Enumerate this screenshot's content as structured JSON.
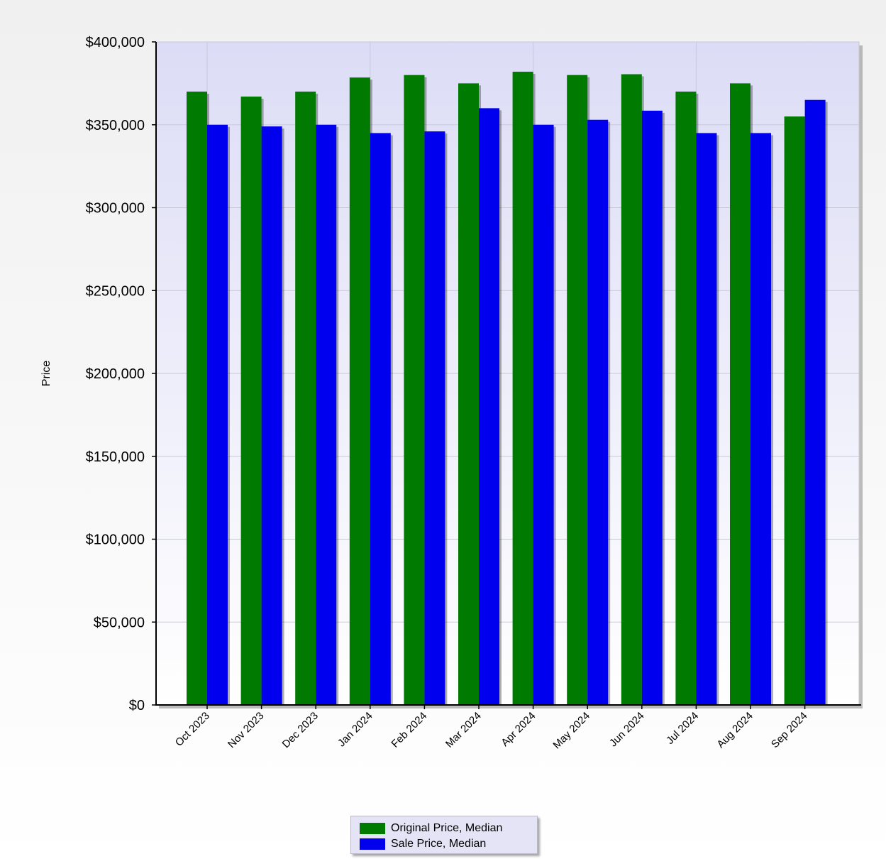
{
  "chart_data": {
    "type": "bar",
    "title": "",
    "xlabel": "",
    "ylabel": "Price",
    "ylim": [
      0,
      400000
    ],
    "yticks": [
      "$0",
      "$50,000",
      "$100,000",
      "$150,000",
      "$200,000",
      "$250,000",
      "$300,000",
      "$350,000",
      "$400,000"
    ],
    "ytick_values": [
      0,
      50000,
      100000,
      150000,
      200000,
      250000,
      300000,
      350000,
      400000
    ],
    "categories": [
      "Oct 2023",
      "Nov 2023",
      "Dec 2023",
      "Jan 2024",
      "Feb 2024",
      "Mar 2024",
      "Apr 2024",
      "May 2024",
      "Jun 2024",
      "Jul 2024",
      "Aug 2024",
      "Sep 2024"
    ],
    "series": [
      {
        "name": "Original Price, Median",
        "color": "#007a00",
        "values": [
          370000,
          367000,
          370000,
          378500,
          380000,
          375000,
          382000,
          380000,
          380500,
          370000,
          375000,
          355000
        ]
      },
      {
        "name": "Sale Price, Median",
        "color": "#0000ee",
        "values": [
          350000,
          349000,
          350000,
          345000,
          346000,
          360000,
          350000,
          353000,
          358500,
          345000,
          345000,
          365000
        ]
      }
    ],
    "grid": true,
    "legend_position": "bottom-center"
  }
}
